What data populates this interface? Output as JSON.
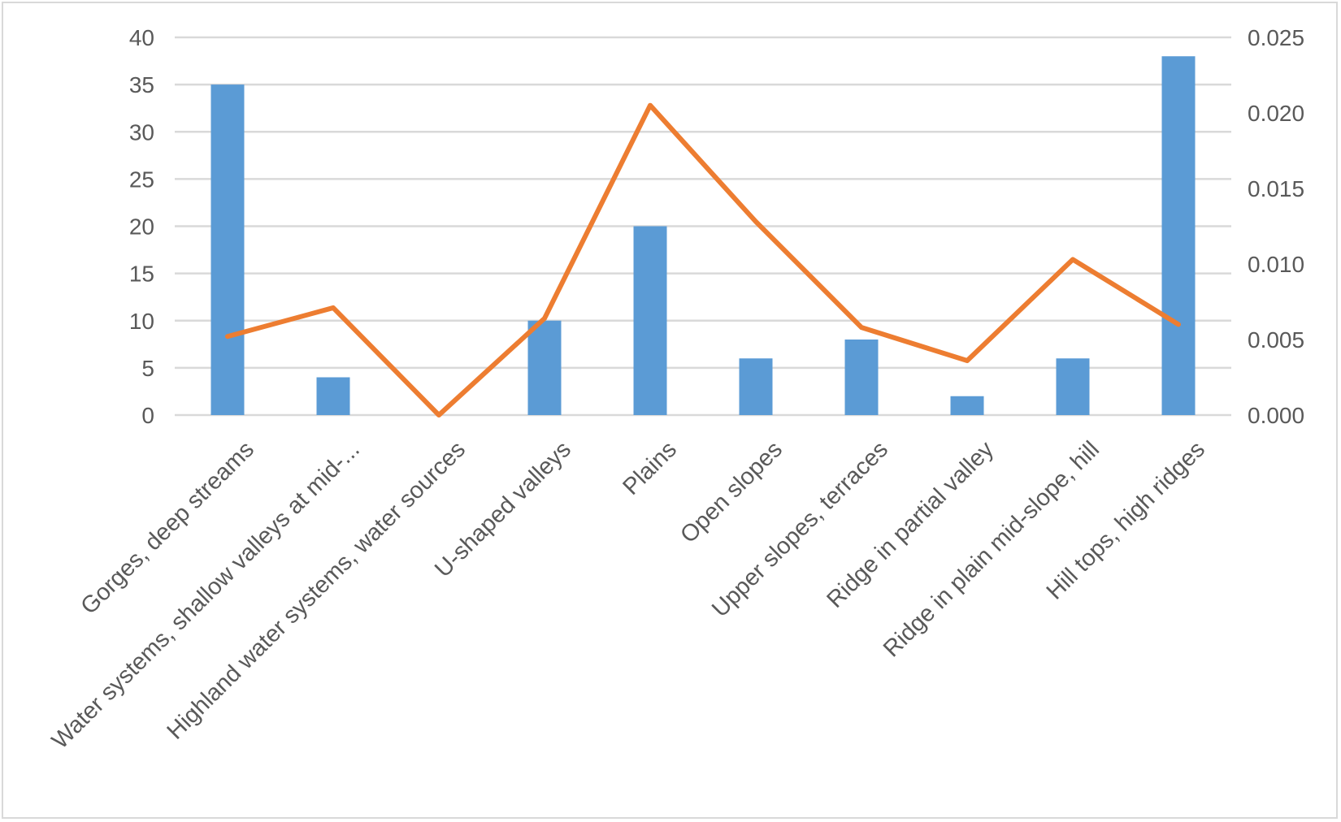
{
  "chart_data": {
    "type": "bar",
    "categories": [
      "Gorges, deep streams",
      "Water systems, shallow valleys at mid-...",
      "Highland water systems, water sources",
      "U-shaped valleys",
      "Plains",
      "Open slopes",
      "Upper slopes, terraces",
      "Ridge in partial valley",
      "Ridge in plain mid-slope, hill",
      "Hill tops, high ridges"
    ],
    "series": [
      {
        "type": "bar",
        "axis": "left",
        "color": "#5b9bd5",
        "values": [
          35,
          4,
          0,
          10,
          20,
          6,
          8,
          2,
          6,
          38
        ]
      },
      {
        "type": "line",
        "axis": "right",
        "color": "#ed7d31",
        "values": [
          0.0052,
          0.0071,
          0.0,
          0.0064,
          0.0205,
          0.0128,
          0.0058,
          0.0036,
          0.0103,
          0.006
        ]
      }
    ],
    "y_left": {
      "min": 0,
      "max": 40,
      "ticks": [
        "0",
        "5",
        "10",
        "15",
        "20",
        "25",
        "30",
        "35",
        "40"
      ]
    },
    "y_right": {
      "min": 0,
      "max": 0.025,
      "ticks": [
        "0.000",
        "0.005",
        "0.010",
        "0.015",
        "0.020",
        "0.025"
      ]
    },
    "title": "",
    "xlabel": "",
    "ylabel": "",
    "grid": true,
    "legend": "none"
  }
}
